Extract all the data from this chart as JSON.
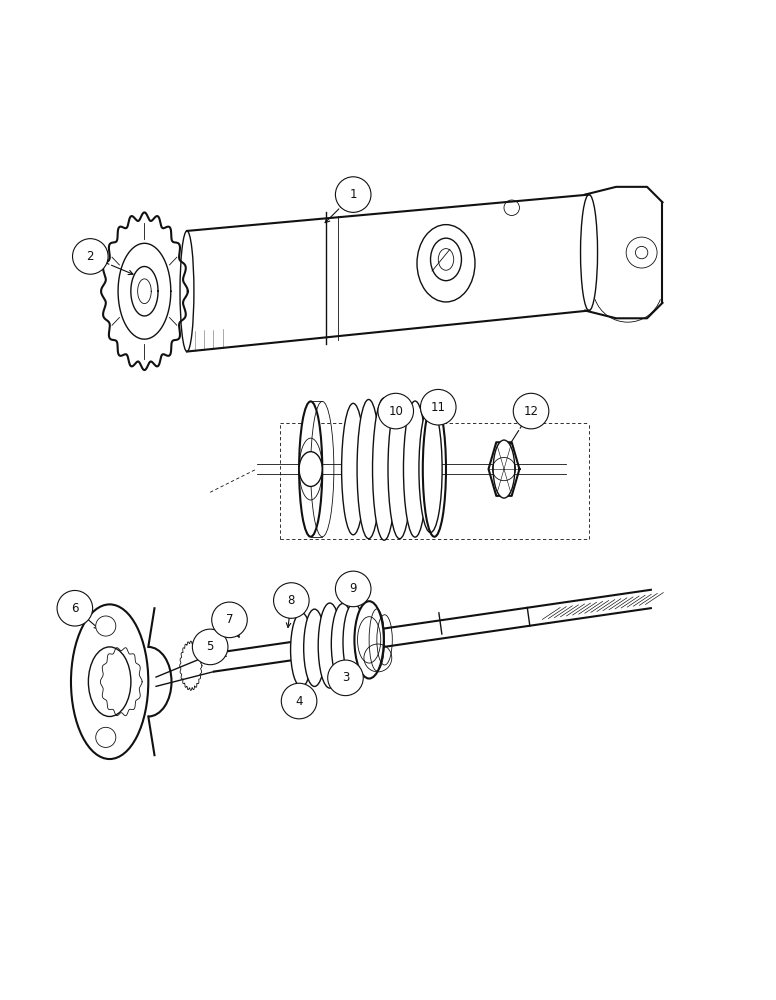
{
  "background_color": "#ffffff",
  "line_color": "#111111",
  "fig_width": 7.76,
  "fig_height": 10.0,
  "dpi": 100,
  "label_configs": [
    [
      1,
      0.455,
      0.895,
      0.415,
      0.855
    ],
    [
      2,
      0.115,
      0.815,
      0.175,
      0.79
    ],
    [
      3,
      0.445,
      0.27,
      0.415,
      0.295
    ],
    [
      4,
      0.385,
      0.24,
      0.385,
      0.27
    ],
    [
      5,
      0.27,
      0.31,
      0.295,
      0.295
    ],
    [
      6,
      0.095,
      0.36,
      0.13,
      0.33
    ],
    [
      7,
      0.295,
      0.345,
      0.31,
      0.318
    ],
    [
      8,
      0.375,
      0.37,
      0.37,
      0.33
    ],
    [
      9,
      0.455,
      0.385,
      0.42,
      0.33
    ],
    [
      10,
      0.51,
      0.615,
      0.47,
      0.565
    ],
    [
      11,
      0.565,
      0.62,
      0.53,
      0.555
    ],
    [
      12,
      0.685,
      0.615,
      0.65,
      0.56
    ]
  ]
}
